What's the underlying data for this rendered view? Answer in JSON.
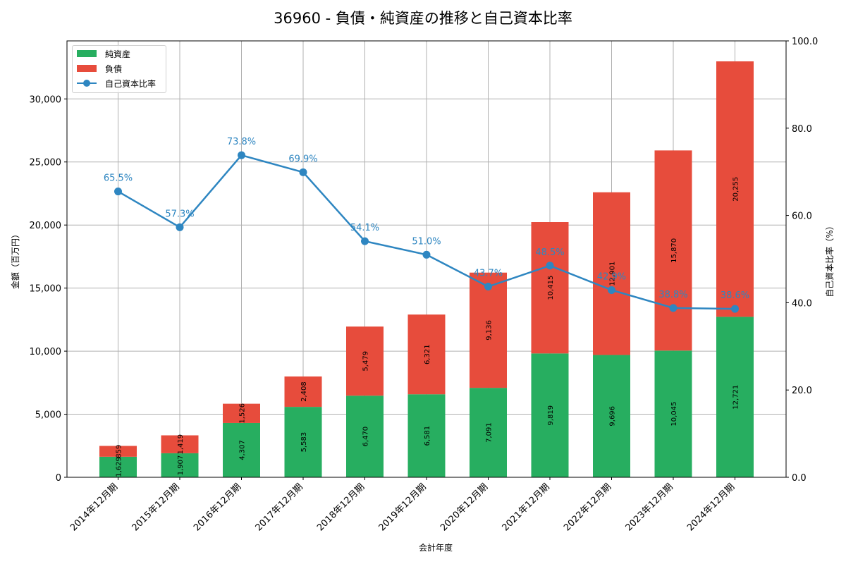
{
  "chart_data": {
    "type": "bar",
    "subtype": "stacked bar + line (dual axis)",
    "title": "36960 - 負債・純資産の推移と自己資本比率",
    "xlabel": "会計年度",
    "ylabel": "金額（百万円）",
    "y2label": "自己資本比率（%）",
    "categories": [
      "2014年12月期",
      "2015年12月期",
      "2016年12月期",
      "2017年12月期",
      "2018年12月期",
      "2019年12月期",
      "2020年12月期",
      "2021年12月期",
      "2022年12月期",
      "2023年12月期",
      "2024年12月期"
    ],
    "series": [
      {
        "name": "純資産",
        "type": "bar",
        "color": "#27ae60",
        "values": [
          1629,
          1907,
          4307,
          5583,
          6470,
          6581,
          7091,
          9819,
          9696,
          10045,
          12721
        ]
      },
      {
        "name": "負債",
        "type": "bar",
        "color": "#e74c3c",
        "values": [
          859,
          1419,
          1526,
          2408,
          5479,
          6321,
          9136,
          10415,
          12901,
          15870,
          20255
        ]
      },
      {
        "name": "自己資本比率",
        "type": "line",
        "axis": "right",
        "color": "#2e86c1",
        "values": [
          65.5,
          57.3,
          73.8,
          69.9,
          54.1,
          51.0,
          43.7,
          48.5,
          42.9,
          38.8,
          38.6
        ]
      }
    ],
    "bar_labels": {
      "equity": [
        "1,629",
        "1,907",
        "4,307",
        "5,583",
        "6,470",
        "6,581",
        "7,091",
        "9,819",
        "9,696",
        "10,045",
        "12,721"
      ],
      "liabilities": [
        "859",
        "1,419",
        "1,526",
        "2,408",
        "5,479",
        "6,321",
        "9,136",
        "10,415",
        "12,901",
        "15,870",
        "20,255"
      ],
      "ratio": [
        "65.5%",
        "57.3%",
        "73.8%",
        "69.9%",
        "54.1%",
        "51.0%",
        "43.7%",
        "48.5%",
        "42.9%",
        "38.8%",
        "38.6%"
      ]
    },
    "ylim": [
      0,
      34600
    ],
    "y2lim": [
      0,
      100
    ],
    "yticks": [
      "0",
      "5,000",
      "10,000",
      "15,000",
      "20,000",
      "25,000",
      "30,000"
    ],
    "y2ticks": [
      "0.0",
      "20.0",
      "40.0",
      "60.0",
      "80.0",
      "100.0"
    ],
    "grid": true,
    "legend_position": "upper left",
    "legend": [
      "純資産",
      "負債",
      "自己資本比率"
    ]
  }
}
